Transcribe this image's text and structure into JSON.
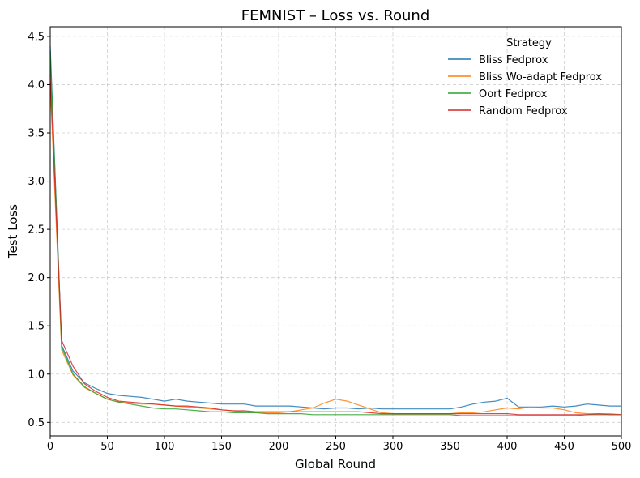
{
  "chart_data": {
    "type": "line",
    "title": "FEMNIST – Loss vs. Round",
    "xlabel": "Global Round",
    "ylabel": "Test Loss",
    "xlim": [
      0,
      500
    ],
    "ylim": [
      0.36,
      4.6
    ],
    "xticks": [
      "0",
      "50",
      "100",
      "150",
      "200",
      "250",
      "300",
      "350",
      "400",
      "450",
      "500"
    ],
    "yticks": [
      "0.5",
      "1.0",
      "1.5",
      "2.0",
      "2.5",
      "3.0",
      "3.5",
      "4.0",
      "4.5"
    ],
    "grid": true,
    "legend": {
      "title": "Strategy",
      "placement": "top-right"
    },
    "series": [
      {
        "name": "Bliss Fedprox",
        "color": "#1f77b4",
        "x": [
          0,
          10,
          20,
          30,
          40,
          50,
          60,
          70,
          80,
          90,
          100,
          110,
          120,
          130,
          140,
          150,
          160,
          170,
          180,
          190,
          200,
          210,
          220,
          230,
          240,
          250,
          260,
          270,
          280,
          290,
          300,
          310,
          320,
          330,
          340,
          350,
          360,
          370,
          380,
          390,
          400,
          410,
          420,
          430,
          440,
          450,
          460,
          470,
          480,
          490,
          500
        ],
        "values": [
          4.4,
          1.3,
          1.03,
          0.91,
          0.85,
          0.8,
          0.78,
          0.77,
          0.76,
          0.74,
          0.72,
          0.74,
          0.72,
          0.71,
          0.7,
          0.69,
          0.69,
          0.69,
          0.67,
          0.67,
          0.67,
          0.67,
          0.66,
          0.65,
          0.64,
          0.65,
          0.65,
          0.64,
          0.65,
          0.64,
          0.64,
          0.64,
          0.64,
          0.64,
          0.64,
          0.64,
          0.66,
          0.69,
          0.71,
          0.72,
          0.75,
          0.66,
          0.66,
          0.66,
          0.67,
          0.66,
          0.67,
          0.69,
          0.68,
          0.67,
          0.67
        ]
      },
      {
        "name": "Bliss Wo-adapt Fedprox",
        "color": "#ff7f0e",
        "x": [
          0,
          10,
          20,
          30,
          40,
          50,
          60,
          70,
          80,
          90,
          100,
          110,
          120,
          130,
          140,
          150,
          160,
          170,
          180,
          190,
          200,
          210,
          220,
          230,
          240,
          250,
          260,
          270,
          280,
          290,
          300,
          310,
          320,
          330,
          340,
          350,
          360,
          370,
          380,
          390,
          400,
          410,
          420,
          430,
          440,
          450,
          460,
          470,
          480,
          490,
          500
        ],
        "values": [
          4.0,
          1.25,
          0.99,
          0.86,
          0.8,
          0.74,
          0.71,
          0.7,
          0.69,
          0.69,
          0.68,
          0.67,
          0.66,
          0.65,
          0.64,
          0.63,
          0.62,
          0.61,
          0.6,
          0.6,
          0.6,
          0.61,
          0.63,
          0.65,
          0.7,
          0.74,
          0.72,
          0.68,
          0.64,
          0.6,
          0.59,
          0.59,
          0.59,
          0.59,
          0.59,
          0.59,
          0.6,
          0.6,
          0.61,
          0.63,
          0.65,
          0.64,
          0.66,
          0.65,
          0.65,
          0.63,
          0.6,
          0.59,
          0.59,
          0.59,
          0.58
        ]
      },
      {
        "name": "Oort Fedprox",
        "color": "#2ca02c",
        "x": [
          0,
          10,
          20,
          30,
          40,
          50,
          60,
          70,
          80,
          90,
          100,
          110,
          120,
          130,
          140,
          150,
          160,
          170,
          180,
          190,
          200,
          210,
          220,
          230,
          240,
          250,
          260,
          270,
          280,
          290,
          300,
          310,
          320,
          330,
          340,
          350,
          360,
          370,
          380,
          390,
          400,
          410,
          420,
          430,
          440,
          450,
          460,
          470,
          480,
          490,
          500
        ],
        "values": [
          4.35,
          1.28,
          1.0,
          0.87,
          0.8,
          0.74,
          0.71,
          0.69,
          0.67,
          0.65,
          0.64,
          0.64,
          0.63,
          0.62,
          0.61,
          0.61,
          0.6,
          0.6,
          0.6,
          0.59,
          0.59,
          0.59,
          0.59,
          0.58,
          0.58,
          0.58,
          0.58,
          0.58,
          0.58,
          0.58,
          0.58,
          0.58,
          0.58,
          0.58,
          0.58,
          0.58,
          0.57,
          0.57,
          0.57,
          0.57,
          0.57,
          0.57,
          0.57,
          0.57,
          0.57,
          0.57,
          0.57,
          0.58,
          0.59,
          0.58,
          0.58
        ]
      },
      {
        "name": "Random Fedprox",
        "color": "#d62728",
        "x": [
          0,
          10,
          20,
          30,
          40,
          50,
          60,
          70,
          80,
          90,
          100,
          110,
          120,
          130,
          140,
          150,
          160,
          170,
          180,
          190,
          200,
          210,
          220,
          230,
          240,
          250,
          260,
          270,
          280,
          290,
          300,
          310,
          320,
          330,
          340,
          350,
          360,
          370,
          380,
          390,
          400,
          410,
          420,
          430,
          440,
          450,
          460,
          470,
          480,
          490,
          500
        ],
        "values": [
          4.1,
          1.35,
          1.08,
          0.9,
          0.82,
          0.76,
          0.72,
          0.71,
          0.7,
          0.69,
          0.68,
          0.67,
          0.67,
          0.66,
          0.65,
          0.63,
          0.62,
          0.62,
          0.61,
          0.61,
          0.61,
          0.61,
          0.61,
          0.61,
          0.61,
          0.61,
          0.61,
          0.61,
          0.6,
          0.59,
          0.59,
          0.59,
          0.59,
          0.59,
          0.59,
          0.59,
          0.59,
          0.59,
          0.59,
          0.59,
          0.59,
          0.58,
          0.58,
          0.58,
          0.58,
          0.58,
          0.58,
          0.58,
          0.58,
          0.58,
          0.58
        ]
      }
    ]
  }
}
